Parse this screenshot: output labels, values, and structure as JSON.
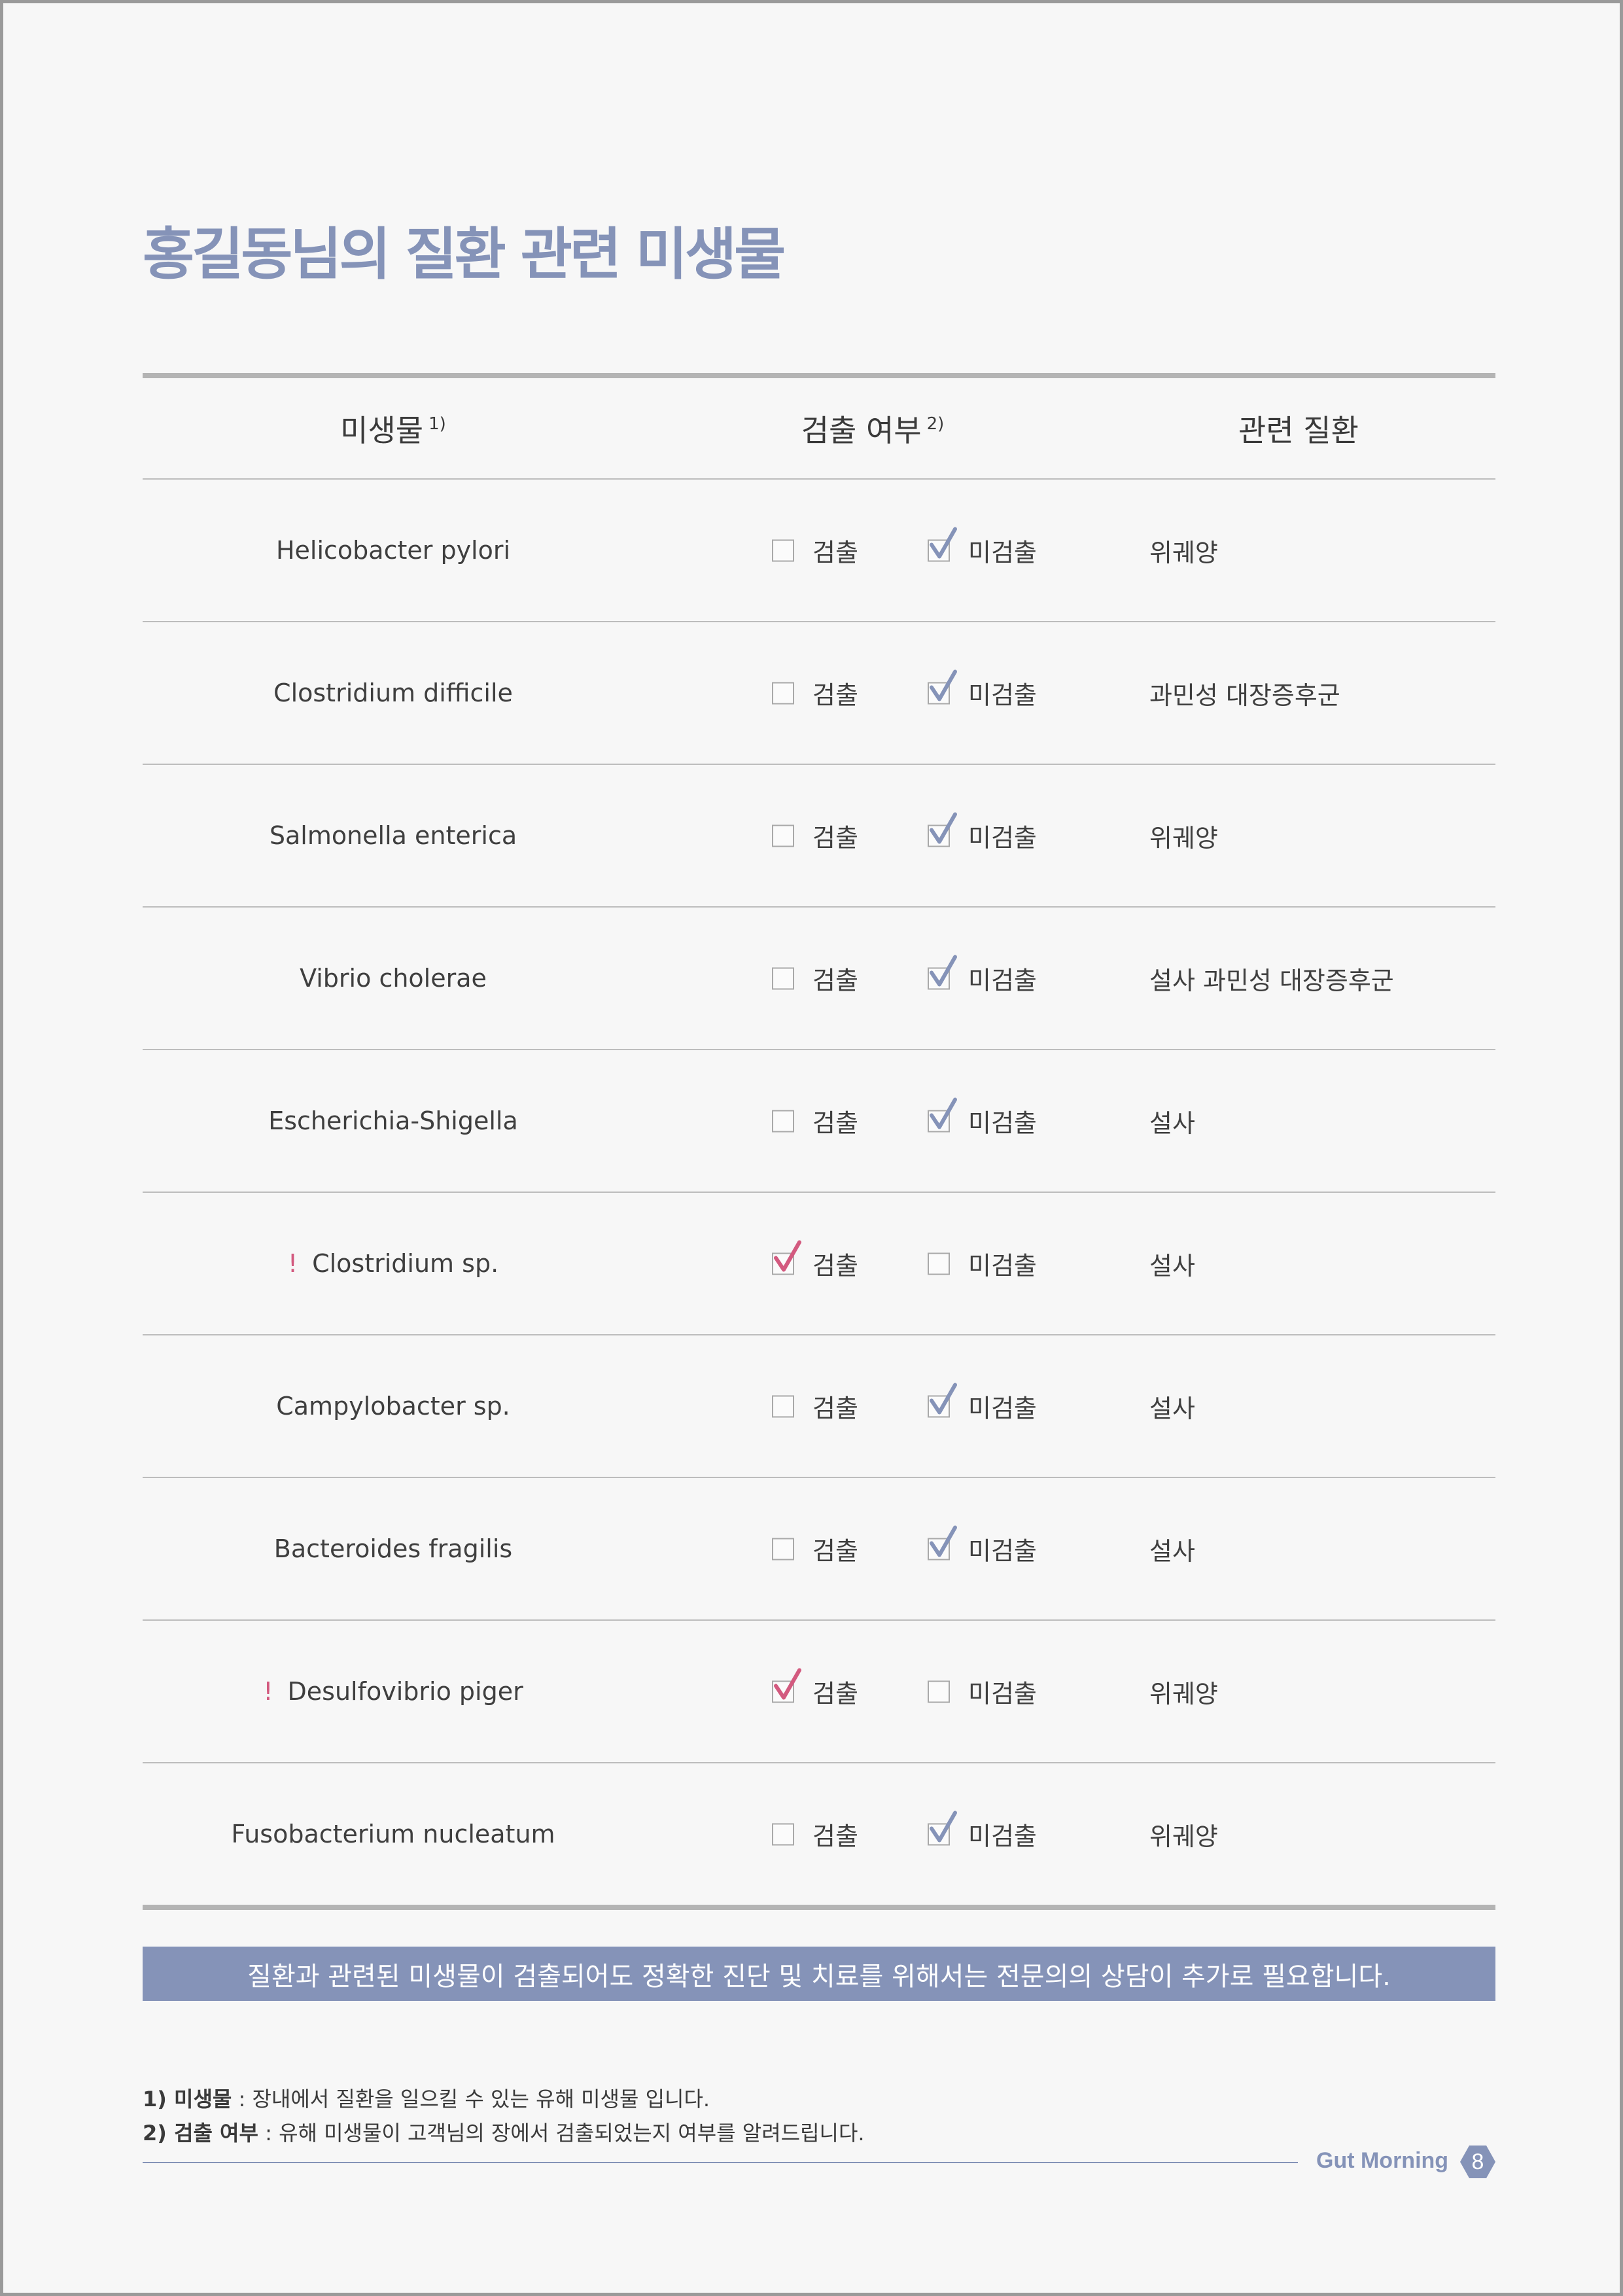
{
  "title": "홍길동님의 질환 관련 미생물",
  "table": {
    "headers": {
      "microbe": "미생물",
      "microbe_note": "1)",
      "detection": "검출 여부",
      "detection_note": "2)",
      "disease": "관련 질환"
    },
    "option_labels": {
      "detected": "검출",
      "not_detected": "미검출"
    },
    "rows": [
      {
        "alert": "",
        "name": "Helicobacter pylori",
        "detected": false,
        "disease": "위궤양"
      },
      {
        "alert": "",
        "name": "Clostridium difficile",
        "detected": false,
        "disease": "과민성 대장증후군"
      },
      {
        "alert": "",
        "name": "Salmonella enterica",
        "detected": false,
        "disease": "위궤양"
      },
      {
        "alert": "",
        "name": "Vibrio cholerae",
        "detected": false,
        "disease": "설사 과민성 대장증후군"
      },
      {
        "alert": "",
        "name": "Escherichia-Shigella",
        "detected": false,
        "disease": "설사"
      },
      {
        "alert": "!",
        "name": "Clostridium sp.",
        "detected": true,
        "disease": "설사"
      },
      {
        "alert": "",
        "name": "Campylobacter sp.",
        "detected": false,
        "disease": "설사"
      },
      {
        "alert": "",
        "name": "Bacteroides fragilis",
        "detected": false,
        "disease": "설사"
      },
      {
        "alert": "!",
        "name": "Desulfovibrio piger",
        "detected": true,
        "disease": "위궤양"
      },
      {
        "alert": "",
        "name": "Fusobacterium nucleatum",
        "detected": false,
        "disease": "위궤양"
      }
    ]
  },
  "banner": "질환과 관련된 미생물이 검출되어도 정확한 진단 및 치료를 위해서는 전문의의 상담이 추가로 필요합니다.",
  "notes": [
    {
      "term": "1) 미생물",
      "text": " : 장내에서 질환을 일으킬 수 있는 유해 미생물 입니다."
    },
    {
      "term": "2) 검출 여부",
      "text": " : 유해 미생물이 고객님의 장에서 검출되었는지 여부를 알려드립니다."
    }
  ],
  "footer": {
    "brand": "Gut Morning",
    "page": "8"
  },
  "colors": {
    "accent": "#8593b8",
    "alert": "#d35a7f",
    "check_normal": "#8593b8",
    "check_detected": "#d35a7f"
  }
}
